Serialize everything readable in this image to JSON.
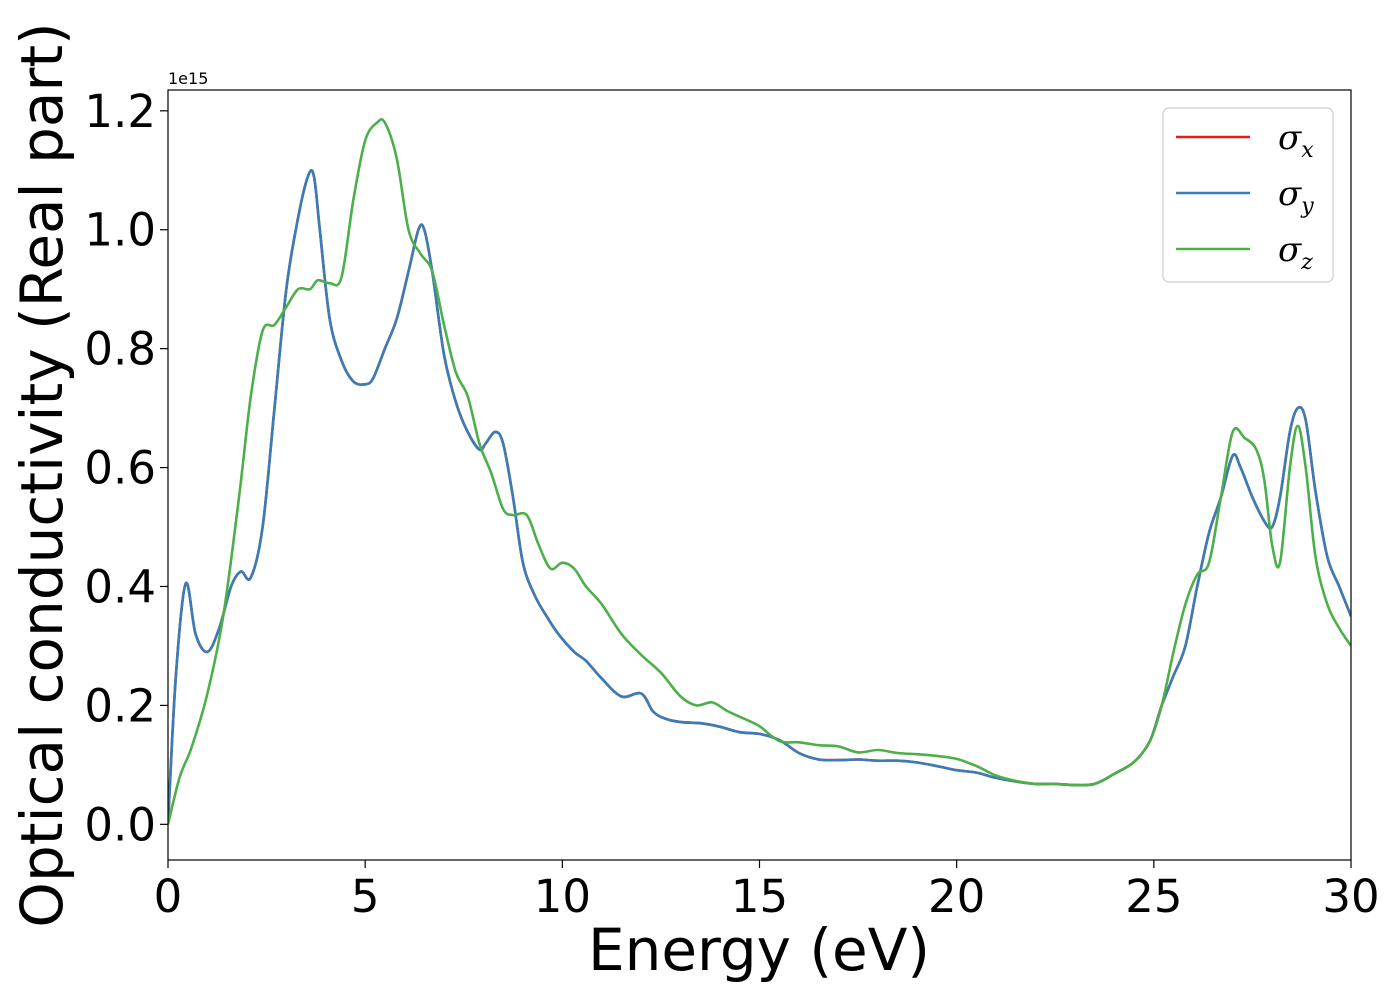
{
  "chart_data": {
    "type": "line",
    "title": "",
    "xlabel": "Energy (eV)",
    "ylabel": "Optical conductivity (Real part)",
    "y_offset_label": "1e15",
    "xlim": [
      0,
      30
    ],
    "ylim": [
      -0.06,
      1.235
    ],
    "xticks": [
      0,
      5,
      10,
      15,
      20,
      25,
      30
    ],
    "xtick_labels": [
      "0",
      "5",
      "10",
      "15",
      "20",
      "25",
      "30"
    ],
    "yticks": [
      0.0,
      0.2,
      0.4,
      0.6,
      0.8,
      1.0,
      1.2
    ],
    "ytick_labels": [
      "0.0",
      "0.2",
      "0.4",
      "0.6",
      "0.8",
      "1.0",
      "1.2"
    ],
    "grid": false,
    "legend_position": "top-right",
    "series": [
      {
        "symbol": "σ",
        "sub": "x",
        "color": "#e41a1c",
        "x": [
          0,
          0.2,
          0.45,
          0.7,
          1.0,
          1.3,
          1.6,
          1.85,
          2.1,
          2.4,
          2.7,
          3.0,
          3.3,
          3.55,
          3.7,
          3.85,
          4.1,
          4.4,
          4.7,
          5.0,
          5.2,
          5.5,
          5.8,
          6.1,
          6.35,
          6.5,
          6.7,
          7.0,
          7.3,
          7.6,
          7.9,
          8.05,
          8.3,
          8.5,
          8.75,
          9.0,
          9.3,
          9.6,
          9.9,
          10.3,
          10.6,
          11.0,
          11.5,
          12.0,
          12.3,
          12.6,
          13.0,
          13.5,
          14.0,
          14.5,
          15.0,
          15.5,
          16.0,
          16.5,
          17.0,
          17.5,
          18.0,
          18.5,
          19.0,
          19.5,
          20.0,
          20.5,
          21.0,
          21.5,
          22.0,
          22.5,
          23.0,
          23.5,
          24.0,
          24.5,
          24.9,
          25.2,
          25.5,
          25.8,
          26.1,
          26.4,
          26.7,
          27.0,
          27.2,
          27.5,
          27.8,
          28.0,
          28.2,
          28.45,
          28.65,
          28.85,
          29.1,
          29.4,
          29.7,
          30.0
        ],
        "y": [
          0.0,
          0.25,
          0.405,
          0.32,
          0.29,
          0.33,
          0.4,
          0.425,
          0.415,
          0.5,
          0.7,
          0.9,
          1.02,
          1.09,
          1.09,
          1.0,
          0.85,
          0.78,
          0.745,
          0.74,
          0.75,
          0.8,
          0.85,
          0.93,
          1.0,
          1.0,
          0.93,
          0.79,
          0.71,
          0.66,
          0.63,
          0.64,
          0.66,
          0.64,
          0.55,
          0.44,
          0.385,
          0.35,
          0.32,
          0.29,
          0.275,
          0.245,
          0.215,
          0.22,
          0.19,
          0.178,
          0.172,
          0.17,
          0.164,
          0.155,
          0.152,
          0.142,
          0.12,
          0.109,
          0.108,
          0.109,
          0.107,
          0.107,
          0.104,
          0.098,
          0.091,
          0.087,
          0.078,
          0.072,
          0.068,
          0.068,
          0.066,
          0.068,
          0.085,
          0.105,
          0.14,
          0.2,
          0.25,
          0.3,
          0.4,
          0.49,
          0.55,
          0.62,
          0.6,
          0.55,
          0.51,
          0.5,
          0.55,
          0.66,
          0.7,
          0.68,
          0.56,
          0.45,
          0.4,
          0.35
        ]
      },
      {
        "symbol": "σ",
        "sub": "y",
        "color": "#377eb8",
        "x": [
          0,
          0.2,
          0.45,
          0.7,
          1.0,
          1.3,
          1.6,
          1.85,
          2.1,
          2.4,
          2.7,
          3.0,
          3.3,
          3.55,
          3.7,
          3.85,
          4.1,
          4.4,
          4.7,
          5.0,
          5.2,
          5.5,
          5.8,
          6.1,
          6.35,
          6.5,
          6.7,
          7.0,
          7.3,
          7.6,
          7.9,
          8.05,
          8.3,
          8.5,
          8.75,
          9.0,
          9.3,
          9.6,
          9.9,
          10.3,
          10.6,
          11.0,
          11.5,
          12.0,
          12.3,
          12.6,
          13.0,
          13.5,
          14.0,
          14.5,
          15.0,
          15.5,
          16.0,
          16.5,
          17.0,
          17.5,
          18.0,
          18.5,
          19.0,
          19.5,
          20.0,
          20.5,
          21.0,
          21.5,
          22.0,
          22.5,
          23.0,
          23.5,
          24.0,
          24.5,
          24.9,
          25.2,
          25.5,
          25.8,
          26.1,
          26.4,
          26.7,
          27.0,
          27.2,
          27.5,
          27.8,
          28.0,
          28.2,
          28.45,
          28.65,
          28.85,
          29.1,
          29.4,
          29.7,
          30.0
        ],
        "y": [
          0.0,
          0.25,
          0.405,
          0.32,
          0.29,
          0.33,
          0.4,
          0.425,
          0.415,
          0.5,
          0.7,
          0.9,
          1.02,
          1.09,
          1.09,
          1.0,
          0.85,
          0.78,
          0.745,
          0.74,
          0.75,
          0.8,
          0.85,
          0.93,
          1.0,
          1.0,
          0.93,
          0.79,
          0.71,
          0.66,
          0.63,
          0.64,
          0.66,
          0.64,
          0.55,
          0.44,
          0.385,
          0.35,
          0.32,
          0.29,
          0.275,
          0.245,
          0.215,
          0.22,
          0.19,
          0.178,
          0.172,
          0.17,
          0.164,
          0.155,
          0.152,
          0.142,
          0.12,
          0.109,
          0.108,
          0.109,
          0.107,
          0.107,
          0.104,
          0.098,
          0.091,
          0.087,
          0.078,
          0.072,
          0.068,
          0.068,
          0.066,
          0.068,
          0.085,
          0.105,
          0.14,
          0.2,
          0.25,
          0.3,
          0.4,
          0.49,
          0.55,
          0.62,
          0.6,
          0.55,
          0.51,
          0.5,
          0.55,
          0.66,
          0.7,
          0.68,
          0.56,
          0.45,
          0.4,
          0.35
        ]
      },
      {
        "symbol": "σ",
        "sub": "z",
        "color": "#4daf4a",
        "x": [
          0,
          0.3,
          0.6,
          1.0,
          1.4,
          1.8,
          2.1,
          2.4,
          2.7,
          3.0,
          3.3,
          3.6,
          3.8,
          4.1,
          4.4,
          4.7,
          5.0,
          5.3,
          5.5,
          5.8,
          6.1,
          6.4,
          6.7,
          7.0,
          7.3,
          7.6,
          7.9,
          8.2,
          8.5,
          8.75,
          9.1,
          9.4,
          9.7,
          10.0,
          10.3,
          10.6,
          11.0,
          11.5,
          12.0,
          12.5,
          13.0,
          13.4,
          13.8,
          14.2,
          14.6,
          15.0,
          15.5,
          16.0,
          16.5,
          17.0,
          17.5,
          18.0,
          18.5,
          19.0,
          19.5,
          20.0,
          20.5,
          21.0,
          21.5,
          22.0,
          22.5,
          23.0,
          23.5,
          24.0,
          24.5,
          24.9,
          25.2,
          25.5,
          25.8,
          26.1,
          26.4,
          26.7,
          27.0,
          27.3,
          27.6,
          27.8,
          28.0,
          28.2,
          28.45,
          28.65,
          28.85,
          29.1,
          29.4,
          29.7,
          30.0
        ],
        "y": [
          0.0,
          0.08,
          0.13,
          0.22,
          0.35,
          0.55,
          0.72,
          0.83,
          0.84,
          0.87,
          0.9,
          0.9,
          0.915,
          0.91,
          0.92,
          1.05,
          1.15,
          1.18,
          1.18,
          1.12,
          1.0,
          0.96,
          0.93,
          0.84,
          0.76,
          0.72,
          0.64,
          0.59,
          0.53,
          0.52,
          0.52,
          0.47,
          0.43,
          0.44,
          0.43,
          0.4,
          0.37,
          0.32,
          0.285,
          0.255,
          0.215,
          0.2,
          0.205,
          0.19,
          0.178,
          0.165,
          0.14,
          0.138,
          0.133,
          0.131,
          0.121,
          0.125,
          0.12,
          0.118,
          0.115,
          0.11,
          0.098,
          0.082,
          0.073,
          0.068,
          0.068,
          0.066,
          0.068,
          0.085,
          0.105,
          0.14,
          0.2,
          0.29,
          0.37,
          0.42,
          0.44,
          0.55,
          0.66,
          0.65,
          0.63,
          0.58,
          0.47,
          0.44,
          0.6,
          0.67,
          0.6,
          0.45,
          0.37,
          0.33,
          0.3
        ]
      }
    ]
  }
}
